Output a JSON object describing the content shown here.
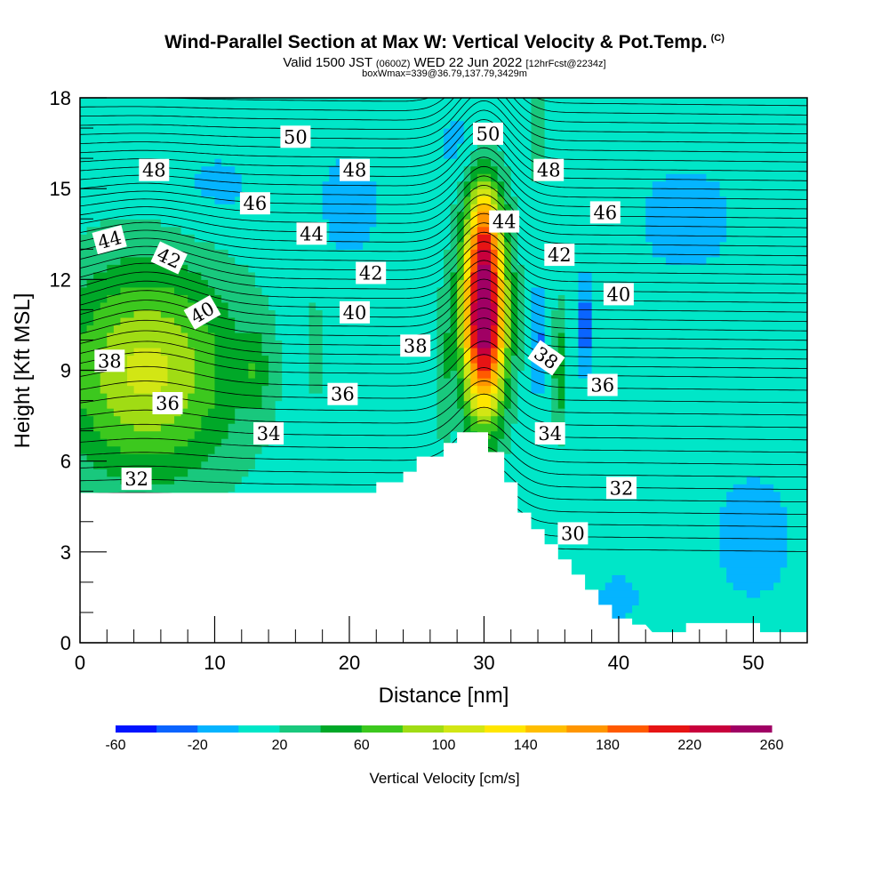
{
  "header": {
    "title": "Wind-Parallel Section at Max W: Vertical Velocity & Pot.Temp.",
    "title_tag": "(C)",
    "valid_prefix": "Valid 1500 JST",
    "valid_z": "(0600Z)",
    "valid_date": "WED 22 Jun 2022",
    "valid_fcst": "[12hrFcst@2234z]",
    "box_info": "boxWmax=339@36.79,137.79,3429m"
  },
  "chart_data": {
    "type": "heatmap",
    "title": "Wind-Parallel Section at Max W: Vertical Velocity & Pot.Temp.",
    "xlabel": "Distance [nm]",
    "ylabel": "Height [Kft MSL]",
    "xlim": [
      0,
      54
    ],
    "ylim": [
      0,
      18
    ],
    "x_ticks": [
      0,
      10,
      20,
      30,
      40,
      50
    ],
    "y_ticks": [
      0,
      3,
      6,
      9,
      12,
      15,
      18
    ],
    "colorbar": {
      "title": "Vertical Velocity [cm/s]",
      "tick_values": [
        -60,
        -20,
        20,
        60,
        100,
        140,
        180,
        220,
        260
      ],
      "levels": [
        -60,
        -40,
        -20,
        0,
        20,
        40,
        60,
        80,
        100,
        120,
        140,
        160,
        180,
        200,
        220,
        240,
        260
      ],
      "colors": [
        "#0014ff",
        "#0a64ff",
        "#05b4ff",
        "#00e6c8",
        "#19c87d",
        "#00a828",
        "#3cc81e",
        "#a0dc14",
        "#d2e614",
        "#ffe600",
        "#ffbe00",
        "#ff9600",
        "#ff5a00",
        "#e61414",
        "#c8003c",
        "#a00064"
      ]
    },
    "terrain": [
      [
        0,
        4.95
      ],
      [
        10,
        4.95
      ],
      [
        10,
        4.95
      ],
      [
        22,
        4.95
      ],
      [
        22,
        5.3
      ],
      [
        24,
        5.3
      ],
      [
        24,
        5.65
      ],
      [
        25,
        5.65
      ],
      [
        25,
        6.15
      ],
      [
        27,
        6.15
      ],
      [
        27,
        6.6
      ],
      [
        28,
        6.6
      ],
      [
        28,
        6.95
      ],
      [
        30,
        6.95
      ],
      [
        30,
        6.95
      ],
      [
        30.3,
        6.95
      ],
      [
        30.3,
        6.3
      ],
      [
        31.5,
        6.3
      ],
      [
        31.5,
        5.3
      ],
      [
        32.5,
        5.3
      ],
      [
        32.5,
        4.3
      ],
      [
        33.5,
        4.3
      ],
      [
        33.5,
        3.75
      ],
      [
        34.5,
        3.75
      ],
      [
        34.5,
        3.25
      ],
      [
        35.5,
        3.25
      ],
      [
        35.5,
        2.75
      ],
      [
        36.5,
        2.75
      ],
      [
        36.5,
        2.25
      ],
      [
        37.5,
        2.25
      ],
      [
        37.5,
        1.75
      ],
      [
        38.5,
        1.75
      ],
      [
        38.5,
        1.25
      ],
      [
        39.5,
        1.25
      ],
      [
        39.5,
        0.8
      ],
      [
        41,
        0.8
      ],
      [
        41,
        0.6
      ],
      [
        42,
        0.6
      ],
      [
        42.5,
        0.35
      ],
      [
        45,
        0.35
      ],
      [
        45,
        0.65
      ],
      [
        50.5,
        0.65
      ],
      [
        50.5,
        0.35
      ],
      [
        54,
        0.35
      ]
    ],
    "vv_features": [
      {
        "x": 5,
        "y": 9,
        "peak": 95,
        "sx": 6.5,
        "sy": 3.5
      },
      {
        "x": 30,
        "y": 10.8,
        "peak": 260,
        "sx": 1.6,
        "sy": 3.2
      },
      {
        "x": 30,
        "y": 13.8,
        "peak": 70,
        "sx": 1.2,
        "sy": 1.8
      },
      {
        "x": 34,
        "y": 10,
        "peak": -40,
        "sx": 0.5,
        "sy": 1.6
      },
      {
        "x": 37.5,
        "y": 10.5,
        "peak": -45,
        "sx": 0.6,
        "sy": 1.5
      },
      {
        "x": 35.6,
        "y": 9,
        "peak": 50,
        "sx": 0.5,
        "sy": 2
      },
      {
        "x": 13,
        "y": 9,
        "peak": 30,
        "sx": 1,
        "sy": 1.3
      },
      {
        "x": 17.5,
        "y": 9.8,
        "peak": 32,
        "sx": 0.6,
        "sy": 1.3
      },
      {
        "x": 34,
        "y": 16.8,
        "peak": 35,
        "sx": 0.6,
        "sy": 1.5
      },
      {
        "x": 27,
        "y": 9,
        "peak": 28,
        "sx": 0.5,
        "sy": 2.5
      },
      {
        "x": 10,
        "y": 15,
        "peak": -15,
        "sx": 4,
        "sy": 1.6
      },
      {
        "x": 20,
        "y": 14.5,
        "peak": -15,
        "sx": 3,
        "sy": 2.5
      },
      {
        "x": 45,
        "y": 14,
        "peak": -15,
        "sx": 5,
        "sy": 2.5
      },
      {
        "x": 50,
        "y": 3.5,
        "peak": -15,
        "sx": 4,
        "sy": 3
      },
      {
        "x": 40,
        "y": 1.5,
        "peak": -12,
        "sx": 3,
        "sy": 1.5
      },
      {
        "x": 28,
        "y": 16.5,
        "peak": -15,
        "sx": 1.5,
        "sy": 1.5
      }
    ],
    "theta_contours": [
      {
        "value": 30,
        "label": "30",
        "label_x": 36.6,
        "label_y": 3.6,
        "label_rot": 0
      },
      {
        "value": 32,
        "label": "32",
        "label_x": 4.2,
        "label_y": 5.4,
        "label_rot": 0
      },
      {
        "value": 32,
        "label": "32",
        "label_x": 40.2,
        "label_y": 5.1,
        "label_rot": 0
      },
      {
        "value": 34,
        "label": "34",
        "label_x": 14,
        "label_y": 6.9,
        "label_rot": 0
      },
      {
        "value": 34,
        "label": "34",
        "label_x": 34.9,
        "label_y": 6.9,
        "label_rot": 0
      },
      {
        "value": 36,
        "label": "36",
        "label_x": 6.5,
        "label_y": 7.9,
        "label_rot": 0
      },
      {
        "value": 36,
        "label": "36",
        "label_x": 19.5,
        "label_y": 8.2,
        "label_rot": 0
      },
      {
        "value": 36,
        "label": "36",
        "label_x": 38.8,
        "label_y": 8.5,
        "label_rot": 0
      },
      {
        "value": 38,
        "label": "38",
        "label_x": 2.2,
        "label_y": 9.3,
        "label_rot": 0
      },
      {
        "value": 38,
        "label": "38",
        "label_x": 24.9,
        "label_y": 9.8,
        "label_rot": 0
      },
      {
        "value": 38,
        "label": "38",
        "label_x": 34.6,
        "label_y": 9.4,
        "label_rot": 35
      },
      {
        "value": 40,
        "label": "40",
        "label_x": 9.1,
        "label_y": 10.9,
        "label_rot": -30
      },
      {
        "value": 40,
        "label": "40",
        "label_x": 20.4,
        "label_y": 10.9,
        "label_rot": 0
      },
      {
        "value": 40,
        "label": "40",
        "label_x": 40,
        "label_y": 11.5,
        "label_rot": 0
      },
      {
        "value": 42,
        "label": "42",
        "label_x": 6.6,
        "label_y": 12.7,
        "label_rot": 25
      },
      {
        "value": 42,
        "label": "42",
        "label_x": 21.6,
        "label_y": 12.2,
        "label_rot": 0
      },
      {
        "value": 42,
        "label": "42",
        "label_x": 35.6,
        "label_y": 12.8,
        "label_rot": 0
      },
      {
        "value": 44,
        "label": "44",
        "label_x": 2.2,
        "label_y": 13.3,
        "label_rot": -15
      },
      {
        "value": 44,
        "label": "44",
        "label_x": 17.2,
        "label_y": 13.5,
        "label_rot": 0
      },
      {
        "value": 44,
        "label": "44",
        "label_x": 31.5,
        "label_y": 13.9,
        "label_rot": 0
      },
      {
        "value": 46,
        "label": "46",
        "label_x": 13,
        "label_y": 14.5,
        "label_rot": 0
      },
      {
        "value": 46,
        "label": "46",
        "label_x": 39,
        "label_y": 14.2,
        "label_rot": 0
      },
      {
        "value": 48,
        "label": "48",
        "label_x": 5.5,
        "label_y": 15.6,
        "label_rot": 0
      },
      {
        "value": 48,
        "label": "48",
        "label_x": 20.4,
        "label_y": 15.6,
        "label_rot": 0
      },
      {
        "value": 48,
        "label": "48",
        "label_x": 34.8,
        "label_y": 15.6,
        "label_rot": 0
      },
      {
        "value": 50,
        "label": "50",
        "label_x": 16,
        "label_y": 16.7,
        "label_rot": 0
      },
      {
        "value": 50,
        "label": "50",
        "label_x": 30.3,
        "label_y": 16.8,
        "label_rot": 0
      }
    ],
    "grid": false
  }
}
